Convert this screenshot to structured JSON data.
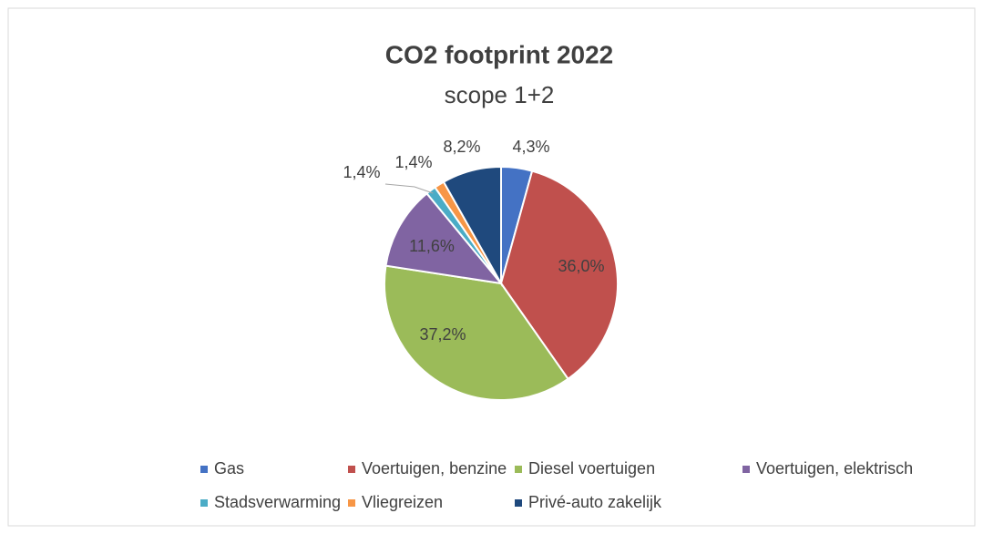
{
  "chart_data": {
    "type": "pie",
    "title": "CO2 footprint 2022",
    "subtitle": "scope 1+2",
    "categories": [
      "Gas",
      "Voertuigen, benzine",
      "Diesel voertuigen",
      "Voertuigen, elektrisch",
      "Stadsverwarming",
      "Vliegreizen",
      "Privé-auto zakelijk"
    ],
    "values": [
      4.3,
      36.0,
      37.2,
      11.6,
      1.4,
      1.4,
      8.2
    ],
    "value_labels": [
      "4,3%",
      "36,0%",
      "37,2%",
      "11,6%",
      "1,4%",
      "1,4%",
      "8,2%"
    ],
    "colors": [
      "#4472c4",
      "#c0504d",
      "#9bbb59",
      "#8064a2",
      "#4bacc6",
      "#f79646",
      "#1f497d"
    ],
    "legend": "bottom"
  }
}
